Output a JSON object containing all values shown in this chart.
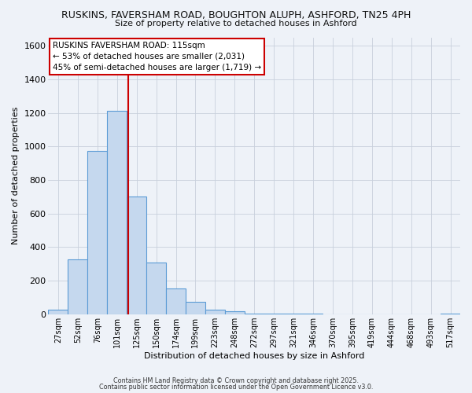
{
  "title_line1": "RUSKINS, FAVERSHAM ROAD, BOUGHTON ALUPH, ASHFORD, TN25 4PH",
  "title_line2": "Size of property relative to detached houses in Ashford",
  "xlabel": "Distribution of detached houses by size in Ashford",
  "ylabel": "Number of detached properties",
  "categories": [
    "27sqm",
    "52sqm",
    "76sqm",
    "101sqm",
    "125sqm",
    "150sqm",
    "174sqm",
    "199sqm",
    "223sqm",
    "248sqm",
    "272sqm",
    "297sqm",
    "321sqm",
    "346sqm",
    "370sqm",
    "395sqm",
    "419sqm",
    "444sqm",
    "468sqm",
    "493sqm",
    "517sqm"
  ],
  "bar_values": [
    25,
    325,
    975,
    1210,
    700,
    310,
    155,
    75,
    25,
    15,
    5,
    2,
    1,
    1,
    0,
    0,
    0,
    0,
    0,
    0,
    2
  ],
  "bar_color": "#c5d8ee",
  "bar_edge_color": "#5b9bd5",
  "ylim": [
    0,
    1650
  ],
  "yticks": [
    0,
    200,
    400,
    600,
    800,
    1000,
    1200,
    1400,
    1600
  ],
  "annotation_title": "RUSKINS FAVERSHAM ROAD: 115sqm",
  "annotation_line2": "← 53% of detached houses are smaller (2,031)",
  "annotation_line3": "45% of semi-detached houses are larger (1,719) →",
  "annotation_box_color": "#ffffff",
  "annotation_box_edge": "#cc0000",
  "property_line_color": "#cc0000",
  "footer_line1": "Contains HM Land Registry data © Crown copyright and database right 2025.",
  "footer_line2": "Contains public sector information licensed under the Open Government Licence v3.0.",
  "bg_color": "#eef2f8",
  "grid_color": "#c8d0dc"
}
